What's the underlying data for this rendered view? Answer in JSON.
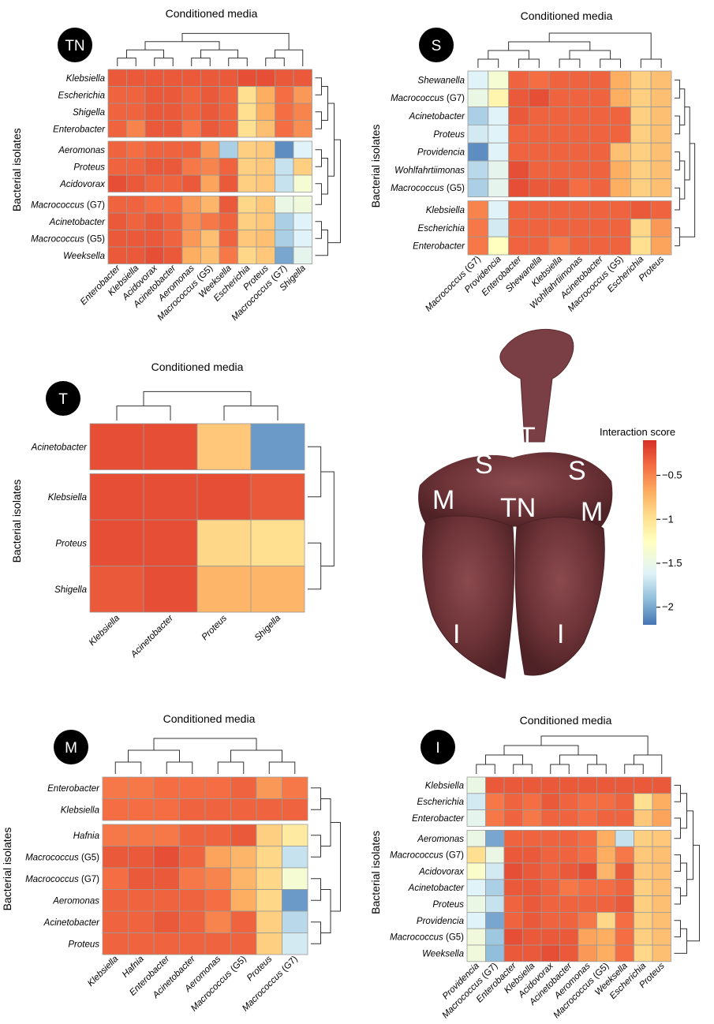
{
  "legend": {
    "title": "Interaction score",
    "ticks": [
      "−0.5",
      "−1",
      "−1.5",
      "−2"
    ],
    "range": [
      -2.2,
      -0.1
    ],
    "colors": [
      "#4575b4",
      "#91bfdb",
      "#e0f3f8",
      "#ffffbf",
      "#fee090",
      "#fdae61",
      "#f46d43",
      "#d73027"
    ]
  },
  "photo": {
    "labels": {
      "trachea": "T",
      "sternal_left": "S",
      "sternal_right": "S",
      "mediastinal_left": "M",
      "mediastinal_right": "M",
      "tracheal_node": "TN",
      "inferior_left": "I",
      "inferior_right": "I"
    }
  },
  "chart_data": [
    {
      "type": "heatmap",
      "panel": "TN",
      "title": "Conditioned media",
      "ylabel": "Bacterial isolates",
      "rows": [
        "Klebsiella",
        "Escherichia",
        "Shigella",
        "Enterobacter",
        "Aeromonas",
        "Proteus",
        "Acidovorax",
        "Macrococcus (G7)",
        "Acinetobacter",
        "Macrococcus (G5)",
        "Weeksella"
      ],
      "columns": [
        "Enterobacter",
        "Klebsiella",
        "Acidovorax",
        "Acinetobacter",
        "Aeromonas",
        "Macrococcus (G5)",
        "Weeksella",
        "Escherichia",
        "Proteus",
        "Macrococcus (G7)",
        "Shigella"
      ],
      "row_groups": [
        4,
        7
      ],
      "values": [
        [
          -0.3,
          -0.3,
          -0.3,
          -0.3,
          -0.3,
          -0.3,
          -0.3,
          -0.25,
          -0.25,
          -0.3,
          -0.3
        ],
        [
          -0.35,
          -0.35,
          -0.3,
          -0.3,
          -0.35,
          -0.3,
          -0.35,
          -1.0,
          -0.7,
          -0.4,
          -0.6
        ],
        [
          -0.35,
          -0.35,
          -0.3,
          -0.3,
          -0.35,
          -0.3,
          -0.35,
          -1.0,
          -0.7,
          -0.4,
          -0.5
        ],
        [
          -0.35,
          -0.5,
          -0.3,
          -0.3,
          -0.45,
          -0.3,
          -0.35,
          -1.0,
          -0.8,
          -0.4,
          -0.55
        ],
        [
          -0.35,
          -0.4,
          -0.35,
          -0.35,
          -0.35,
          -0.6,
          -1.8,
          -0.9,
          -0.85,
          -2.1,
          -1.6
        ],
        [
          -0.35,
          -0.35,
          -0.3,
          -0.3,
          -0.45,
          -0.5,
          -0.35,
          -0.9,
          -0.85,
          -1.7,
          -0.9
        ],
        [
          -0.25,
          -0.3,
          -0.35,
          -0.35,
          -0.3,
          -0.65,
          -0.3,
          -0.9,
          -0.85,
          -1.7,
          -1.4
        ],
        [
          -0.35,
          -0.35,
          -0.4,
          -0.4,
          -0.6,
          -0.75,
          -0.3,
          -0.95,
          -0.85,
          -1.5,
          -1.45
        ],
        [
          -0.3,
          -0.35,
          -0.3,
          -0.35,
          -0.55,
          -0.45,
          -0.35,
          -0.9,
          -0.85,
          -1.8,
          -1.6
        ],
        [
          -0.3,
          -0.3,
          -0.3,
          -0.35,
          -0.6,
          -0.8,
          -0.35,
          -0.85,
          -0.8,
          -1.8,
          -1.6
        ],
        [
          -0.3,
          -0.3,
          -0.25,
          -0.3,
          -0.7,
          -0.8,
          -0.45,
          -0.95,
          -0.85,
          -2.0,
          -1.55
        ]
      ]
    },
    {
      "type": "heatmap",
      "panel": "S",
      "title": "Conditioned media",
      "ylabel": "Bacterial isolates",
      "rows": [
        "Shewanella",
        "Macrococcus (G7)",
        "Acinetobacter",
        "Proteus",
        "Providencia",
        "Wohlfahrtiimonas",
        "Macrococcus (G5)",
        "Klebsiella",
        "Escherichia",
        "Enterobacter"
      ],
      "columns": [
        "Macrococcus (G7)",
        "Providencia",
        "Enterobacter",
        "Shewanella",
        "Klebsiella",
        "Wohlfahrtiimonas",
        "Acinetobacter",
        "Macrococcus (G5)",
        "Escherichia",
        "Proteus"
      ],
      "row_groups": [
        7
      ],
      "values": [
        [
          -1.6,
          -1.4,
          -0.35,
          -0.4,
          -0.35,
          -0.35,
          -0.35,
          -0.7,
          -0.9,
          -0.8
        ],
        [
          -1.5,
          -1.2,
          -0.3,
          -0.25,
          -0.35,
          -0.35,
          -0.35,
          -0.7,
          -0.9,
          -0.8
        ],
        [
          -1.8,
          -1.6,
          -0.3,
          -0.35,
          -0.35,
          -0.35,
          -0.35,
          -0.35,
          -0.9,
          -0.8
        ],
        [
          -1.65,
          -1.6,
          -0.35,
          -0.35,
          -0.35,
          -0.35,
          -0.35,
          -0.35,
          -0.9,
          -0.8
        ],
        [
          -2.1,
          -1.6,
          -0.35,
          -0.35,
          -0.35,
          -0.35,
          -0.35,
          -0.8,
          -0.9,
          -0.8
        ],
        [
          -1.75,
          -1.55,
          -0.25,
          -0.35,
          -0.35,
          -0.35,
          -0.35,
          -0.7,
          -0.9,
          -0.8
        ],
        [
          -1.8,
          -1.55,
          -0.25,
          -0.3,
          -0.3,
          -0.4,
          -0.35,
          -0.7,
          -0.9,
          -0.8
        ],
        [
          -0.5,
          -1.6,
          -0.35,
          -0.35,
          -0.35,
          -0.35,
          -0.35,
          -0.35,
          -0.3,
          -0.35
        ],
        [
          -0.45,
          -1.65,
          -0.35,
          -0.35,
          -0.35,
          -0.35,
          -0.35,
          -0.35,
          -0.95,
          -0.6
        ],
        [
          -0.45,
          -1.3,
          -0.35,
          -0.35,
          -0.45,
          -0.35,
          -0.35,
          -0.35,
          -1.0,
          -0.65
        ]
      ]
    },
    {
      "type": "heatmap",
      "panel": "T",
      "title": "Conditioned media",
      "ylabel": "Bacterial isolates",
      "rows": [
        "Acinetobacter",
        "Klebsiella",
        "Proteus",
        "Shigella"
      ],
      "columns": [
        "Klebsiella",
        "Acinetobacter",
        "Proteus",
        "Shigella"
      ],
      "row_groups": [
        1
      ],
      "values": [
        [
          -0.25,
          -0.25,
          -0.85,
          -2.05
        ],
        [
          -0.25,
          -0.25,
          -0.25,
          -0.3
        ],
        [
          -0.25,
          -0.25,
          -0.95,
          -1.0
        ],
        [
          -0.3,
          -0.25,
          -0.75,
          -0.75
        ]
      ]
    },
    {
      "type": "heatmap",
      "panel": "M",
      "title": "Conditioned media",
      "ylabel": "Bacterial isolates",
      "rows": [
        "Enterobacter",
        "Klebsiella",
        "Hafnia",
        "Macrococcus (G5)",
        "Macrococcus (G7)",
        "Aeromonas",
        "Acinetobacter",
        "Proteus"
      ],
      "columns": [
        "Klebsiella",
        "Hafnia",
        "Enterobacter",
        "Acinetobacter",
        "Aeromonas",
        "Macrococcus (G5)",
        "Proteus",
        "Macrococcus (G7)"
      ],
      "row_groups": [
        2
      ],
      "values": [
        [
          -0.45,
          -0.45,
          -0.4,
          -0.4,
          -0.4,
          -0.35,
          -0.6,
          -0.45
        ],
        [
          -0.4,
          -0.4,
          -0.4,
          -0.35,
          -0.35,
          -0.35,
          -0.35,
          -0.35
        ],
        [
          -0.45,
          -0.45,
          -0.45,
          -0.35,
          -0.35,
          -0.3,
          -0.9,
          -1.1
        ],
        [
          -0.3,
          -0.3,
          -0.25,
          -0.35,
          -0.65,
          -0.75,
          -0.95,
          -1.7
        ],
        [
          -0.4,
          -0.3,
          -0.3,
          -0.45,
          -0.5,
          -0.75,
          -0.95,
          -1.4
        ],
        [
          -0.35,
          -0.35,
          -0.35,
          -0.35,
          -0.4,
          -0.7,
          -0.95,
          -2.05
        ],
        [
          -0.35,
          -0.35,
          -0.3,
          -0.35,
          -0.5,
          -0.35,
          -0.9,
          -1.75
        ],
        [
          -0.35,
          -0.35,
          -0.35,
          -0.35,
          -0.35,
          -0.35,
          -0.9,
          -1.65
        ]
      ]
    },
    {
      "type": "heatmap",
      "panel": "I",
      "title": "Conditioned media",
      "ylabel": "Bacterial isolates",
      "rows": [
        "Klebsiella",
        "Escherichia",
        "Enterobacter",
        "Aeromonas",
        "Macrococcus (G7)",
        "Acidovorax",
        "Acinetobacter",
        "Proteus",
        "Providencia",
        "Macrococcus (G5)",
        "Weeksella"
      ],
      "columns": [
        "Providencia",
        "Macrococcus (G7)",
        "Enterobacter",
        "Klebsiella",
        "Acidovorax",
        "Acinetobacter",
        "Aeromonas",
        "Macrococcus (G5)",
        "Weeksella",
        "Escherichia",
        "Proteus"
      ],
      "row_groups": [
        3
      ],
      "values": [
        [
          -1.5,
          -0.3,
          -0.3,
          -0.3,
          -0.3,
          -0.3,
          -0.3,
          -0.3,
          -0.3,
          -0.3,
          -0.3
        ],
        [
          -1.65,
          -0.45,
          -0.35,
          -0.4,
          -0.3,
          -0.35,
          -0.4,
          -0.4,
          -0.35,
          -1.0,
          -0.7
        ],
        [
          -1.55,
          -0.45,
          -0.35,
          -0.45,
          -0.35,
          -0.35,
          -0.4,
          -0.35,
          -0.35,
          -0.85,
          -0.65
        ],
        [
          -1.5,
          -2.0,
          -0.35,
          -0.35,
          -0.35,
          -0.35,
          -0.4,
          -0.7,
          -1.7,
          -0.9,
          -0.85
        ],
        [
          -1.0,
          -1.5,
          -0.3,
          -0.3,
          -0.35,
          -0.35,
          -0.4,
          -0.7,
          -0.45,
          -0.85,
          -0.8
        ],
        [
          -1.35,
          -1.65,
          -0.25,
          -0.3,
          -0.35,
          -0.3,
          -0.25,
          -0.75,
          -0.3,
          -0.85,
          -0.8
        ],
        [
          -1.6,
          -1.8,
          -0.3,
          -0.3,
          -0.35,
          -0.45,
          -0.4,
          -0.4,
          -0.35,
          -0.9,
          -0.8
        ],
        [
          -1.5,
          -1.7,
          -0.35,
          -0.3,
          -0.35,
          -0.35,
          -0.35,
          -0.35,
          -0.3,
          -0.9,
          -0.8
        ],
        [
          -1.6,
          -2.0,
          -0.35,
          -0.3,
          -0.35,
          -0.35,
          -0.45,
          -0.95,
          -0.4,
          -0.9,
          -0.8
        ],
        [
          -1.45,
          -1.85,
          -0.25,
          -0.3,
          -0.3,
          -0.3,
          -0.65,
          -0.7,
          -0.4,
          -0.9,
          -0.8
        ],
        [
          -1.45,
          -1.9,
          -0.3,
          -0.3,
          -0.25,
          -0.3,
          -0.6,
          -0.7,
          -0.4,
          -0.95,
          -0.8
        ]
      ]
    }
  ]
}
